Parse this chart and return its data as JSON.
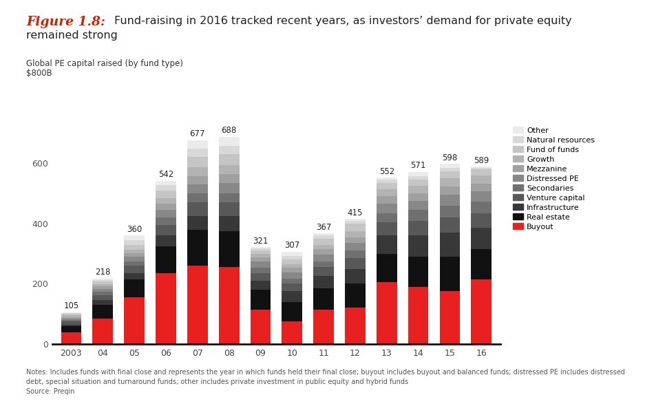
{
  "years": [
    "2003",
    "04",
    "05",
    "06",
    "07",
    "08",
    "09",
    "10",
    "11",
    "12",
    "13",
    "14",
    "15",
    "16"
  ],
  "totals": [
    105,
    218,
    360,
    542,
    677,
    688,
    321,
    307,
    367,
    415,
    552,
    571,
    598,
    589
  ],
  "segments_raw": {
    "Buyout": [
      38,
      85,
      155,
      235,
      260,
      255,
      115,
      75,
      115,
      120,
      205,
      190,
      175,
      215
    ],
    "Real estate": [
      22,
      45,
      60,
      90,
      120,
      120,
      65,
      65,
      70,
      80,
      95,
      100,
      115,
      100
    ],
    "Infrastructure": [
      5,
      15,
      20,
      35,
      45,
      50,
      30,
      35,
      40,
      50,
      60,
      70,
      80,
      70
    ],
    "Venture capital": [
      10,
      18,
      25,
      35,
      45,
      45,
      25,
      25,
      30,
      35,
      45,
      50,
      50,
      50
    ],
    "Secondaries": [
      5,
      10,
      15,
      25,
      30,
      30,
      18,
      18,
      20,
      25,
      30,
      35,
      40,
      38
    ],
    "Distressed PE": [
      5,
      10,
      15,
      25,
      30,
      35,
      20,
      20,
      22,
      25,
      30,
      30,
      35,
      33
    ],
    "Mezzanine": [
      5,
      8,
      12,
      20,
      28,
      30,
      15,
      15,
      18,
      20,
      25,
      25,
      28,
      27
    ],
    "Growth": [
      5,
      8,
      12,
      20,
      28,
      30,
      12,
      12,
      15,
      20,
      25,
      25,
      28,
      27
    ],
    "Fund of funds": [
      5,
      8,
      15,
      25,
      35,
      35,
      10,
      15,
      20,
      25,
      20,
      20,
      22,
      20
    ],
    "Natural resources": [
      3,
      6,
      15,
      18,
      28,
      28,
      8,
      12,
      12,
      10,
      12,
      12,
      12,
      5
    ],
    "Other": [
      2,
      5,
      16,
      14,
      28,
      30,
      3,
      15,
      5,
      5,
      5,
      14,
      13,
      4
    ]
  },
  "colors": {
    "Buyout": "#e82020",
    "Real estate": "#111111",
    "Infrastructure": "#383838",
    "Venture capital": "#585858",
    "Secondaries": "#707070",
    "Distressed PE": "#888888",
    "Mezzanine": "#a0a0a0",
    "Growth": "#b3b3b3",
    "Fund of funds": "#c5c5c5",
    "Natural resources": "#d8d8d8",
    "Other": "#ebebeb"
  },
  "segment_order": [
    "Buyout",
    "Real estate",
    "Infrastructure",
    "Venture capital",
    "Secondaries",
    "Distressed PE",
    "Mezzanine",
    "Growth",
    "Fund of funds",
    "Natural resources",
    "Other"
  ],
  "title_prefix": "Figure 1.8:",
  "title_line1": "Fund-raising in 2016 tracked recent years, as investors’ demand for private equity",
  "title_line2": "remained strong",
  "subtitle1": "Global PE capital raised (by fund type)",
  "subtitle2": "$800B",
  "notes_line1": "Notes: Includes funds with final close and represents the year in which funds held their final close; buyout includes buyout and balanced funds; distressed PE includes distressed",
  "notes_line2": "debt, special situation and turnaround funds; other includes private investment in public equity and hybrid funds",
  "source": "Source: Preqin",
  "ylim": [
    0,
    720
  ],
  "yticks": [
    0,
    200,
    400,
    600
  ],
  "bg_color": "#ffffff"
}
